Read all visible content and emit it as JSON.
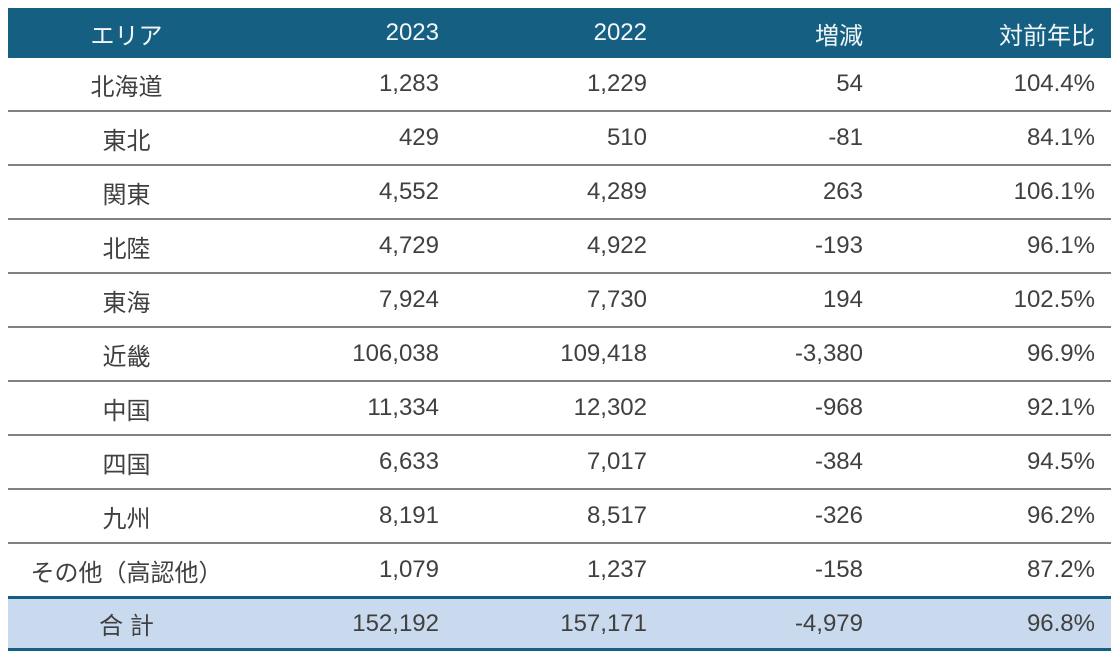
{
  "table": {
    "columns": [
      "エリア",
      "2023",
      "2022",
      "増減",
      "対前年比"
    ],
    "rows": [
      [
        "北海道",
        "1,283",
        "1,229",
        "54",
        "104.4%"
      ],
      [
        "東北",
        "429",
        "510",
        "-81",
        "84.1%"
      ],
      [
        "関東",
        "4,552",
        "4,289",
        "263",
        "106.1%"
      ],
      [
        "北陸",
        "4,729",
        "4,922",
        "-193",
        "96.1%"
      ],
      [
        "東海",
        "7,924",
        "7,730",
        "194",
        "102.5%"
      ],
      [
        "近畿",
        "106,038",
        "109,418",
        "-3,380",
        "96.9%"
      ],
      [
        "中国",
        "11,334",
        "12,302",
        "-968",
        "92.1%"
      ],
      [
        "四国",
        "6,633",
        "7,017",
        "-384",
        "94.5%"
      ],
      [
        "九州",
        "8,191",
        "8,517",
        "-326",
        "96.2%"
      ],
      [
        "その他（高認他）",
        "1,079",
        "1,237",
        "-158",
        "87.2%"
      ]
    ],
    "total": [
      "合 計",
      "152,192",
      "157,171",
      "-4,979",
      "96.8%"
    ]
  },
  "colors": {
    "header_bg": "#156082",
    "header_text": "#F2F6F8",
    "total_row_bg": "#C9DAEE",
    "row_separator": "#808080",
    "accent_border": "#156082",
    "body_text": "#404040"
  },
  "chart_data": {
    "type": "table",
    "title": "",
    "columns": [
      "エリア",
      "2023",
      "2022",
      "増減",
      "対前年比"
    ],
    "rows": [
      {
        "area": "北海道",
        "y2023": 1283,
        "y2022": 1229,
        "diff": 54,
        "ratio_pct": 104.4
      },
      {
        "area": "東北",
        "y2023": 429,
        "y2022": 510,
        "diff": -81,
        "ratio_pct": 84.1
      },
      {
        "area": "関東",
        "y2023": 4552,
        "y2022": 4289,
        "diff": 263,
        "ratio_pct": 106.1
      },
      {
        "area": "北陸",
        "y2023": 4729,
        "y2022": 4922,
        "diff": -193,
        "ratio_pct": 96.1
      },
      {
        "area": "東海",
        "y2023": 7924,
        "y2022": 7730,
        "diff": 194,
        "ratio_pct": 102.5
      },
      {
        "area": "近畿",
        "y2023": 106038,
        "y2022": 109418,
        "diff": -3380,
        "ratio_pct": 96.9
      },
      {
        "area": "中国",
        "y2023": 11334,
        "y2022": 12302,
        "diff": -968,
        "ratio_pct": 92.1
      },
      {
        "area": "四国",
        "y2023": 6633,
        "y2022": 7017,
        "diff": -384,
        "ratio_pct": 94.5
      },
      {
        "area": "九州",
        "y2023": 8191,
        "y2022": 8517,
        "diff": -326,
        "ratio_pct": 96.2
      },
      {
        "area": "その他（高認他）",
        "y2023": 1079,
        "y2022": 1237,
        "diff": -158,
        "ratio_pct": 87.2
      },
      {
        "area": "合 計",
        "y2023": 152192,
        "y2022": 157171,
        "diff": -4979,
        "ratio_pct": 96.8
      }
    ]
  }
}
